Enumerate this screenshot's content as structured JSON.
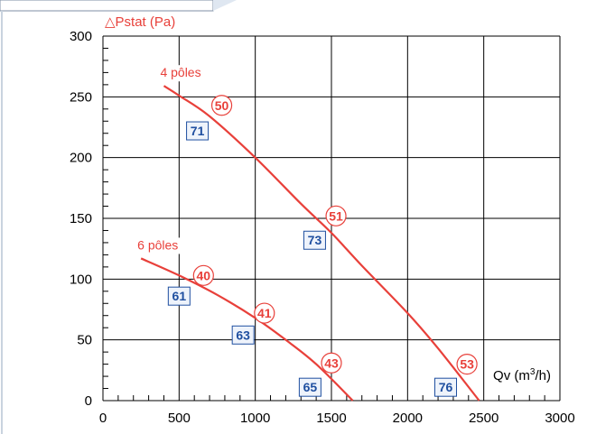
{
  "chart_data": {
    "type": "line",
    "title": "",
    "ylabel": "△Pstat (Pa)",
    "xlabel_main": "Qv (m",
    "xlabel_sup": "3",
    "xlabel_tail": "/h)",
    "xlim": [
      0,
      3000
    ],
    "ylim": [
      0,
      300
    ],
    "x_ticks": [
      0,
      500,
      1000,
      1500,
      2000,
      2500,
      3000
    ],
    "y_ticks": [
      0,
      50,
      100,
      150,
      200,
      250,
      300
    ],
    "grid": true,
    "colors": {
      "curve": "#e8403a",
      "box": "#1f4fa0",
      "box_bg": "#eef3fb",
      "grid": "#000000"
    },
    "series": [
      {
        "name": "4 pôles",
        "x": [
          400,
          500,
          700,
          1000,
          1300,
          1500,
          1700,
          2000,
          2200,
          2470
        ],
        "y": [
          259,
          251,
          234,
          200,
          162,
          138,
          111,
          72,
          43,
          0
        ]
      },
      {
        "name": "6 pôles",
        "x": [
          250,
          500,
          750,
          1000,
          1200,
          1400,
          1640
        ],
        "y": [
          117,
          103,
          87,
          68,
          50,
          30,
          0
        ]
      }
    ],
    "circle_labels": [
      {
        "text": "50",
        "x": 780,
        "y": 243
      },
      {
        "text": "51",
        "x": 1530,
        "y": 152
      },
      {
        "text": "53",
        "x": 2390,
        "y": 30
      },
      {
        "text": "40",
        "x": 660,
        "y": 103
      },
      {
        "text": "41",
        "x": 1060,
        "y": 72
      },
      {
        "text": "43",
        "x": 1500,
        "y": 31
      }
    ],
    "box_labels": [
      {
        "text": "71",
        "x": 620,
        "y": 222
      },
      {
        "text": "73",
        "x": 1390,
        "y": 132
      },
      {
        "text": "76",
        "x": 2250,
        "y": 11
      },
      {
        "text": "61",
        "x": 500,
        "y": 86
      },
      {
        "text": "63",
        "x": 920,
        "y": 54
      },
      {
        "text": "65",
        "x": 1360,
        "y": 11
      }
    ]
  }
}
